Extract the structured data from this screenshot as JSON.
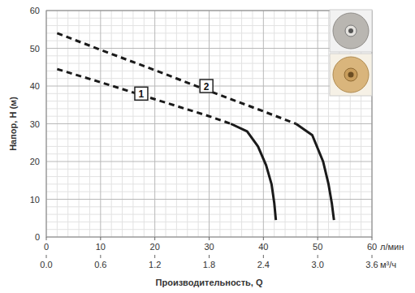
{
  "chart_data": {
    "type": "line",
    "ylabel": "Напор, H (м)",
    "xlabel": "Производительность, Q",
    "x_unit": "л/мин",
    "x2_unit": "м³/ч",
    "xlim": [
      0,
      60
    ],
    "xticks": [
      0,
      10,
      20,
      30,
      40,
      50,
      60
    ],
    "x2lim": [
      0,
      3.6
    ],
    "x2ticks": [
      {
        "value": 0,
        "label": "0.0"
      },
      0.6,
      1.2,
      1.8,
      2.4,
      {
        "value": 3,
        "label": "3.0"
      },
      3.6
    ],
    "ylim": [
      0,
      60
    ],
    "yticks": [
      0,
      10,
      20,
      30,
      40,
      50,
      60
    ],
    "grid": true,
    "series": [
      {
        "color": "#1a1a1a",
        "line_style": "dashed",
        "x": [
          2,
          10,
          20,
          30,
          34
        ],
        "values": [
          44.5,
          41,
          36.5,
          32,
          30
        ]
      },
      {
        "color": "#1a1a1a",
        "line_style": "solid",
        "x": [
          34,
          37,
          39,
          40.5,
          41.5,
          42,
          42.3
        ],
        "values": [
          30,
          28,
          24,
          19,
          14,
          9,
          4.5
        ]
      },
      {
        "color": "#1a1a1a",
        "line_style": "dashed",
        "x": [
          2,
          10,
          20,
          30,
          40,
          46
        ],
        "values": [
          54,
          49.6,
          44.2,
          38.7,
          33.3,
          30
        ]
      },
      {
        "color": "#1a1a1a",
        "line_style": "solid",
        "x": [
          46,
          49,
          51,
          52,
          52.6,
          53
        ],
        "values": [
          30,
          27,
          20,
          14,
          9,
          4.5
        ]
      }
    ],
    "annotations": [
      {
        "text": "1",
        "x": 17.5,
        "y": 38
      },
      {
        "text": "2",
        "x": 29.5,
        "y": 40
      }
    ]
  }
}
